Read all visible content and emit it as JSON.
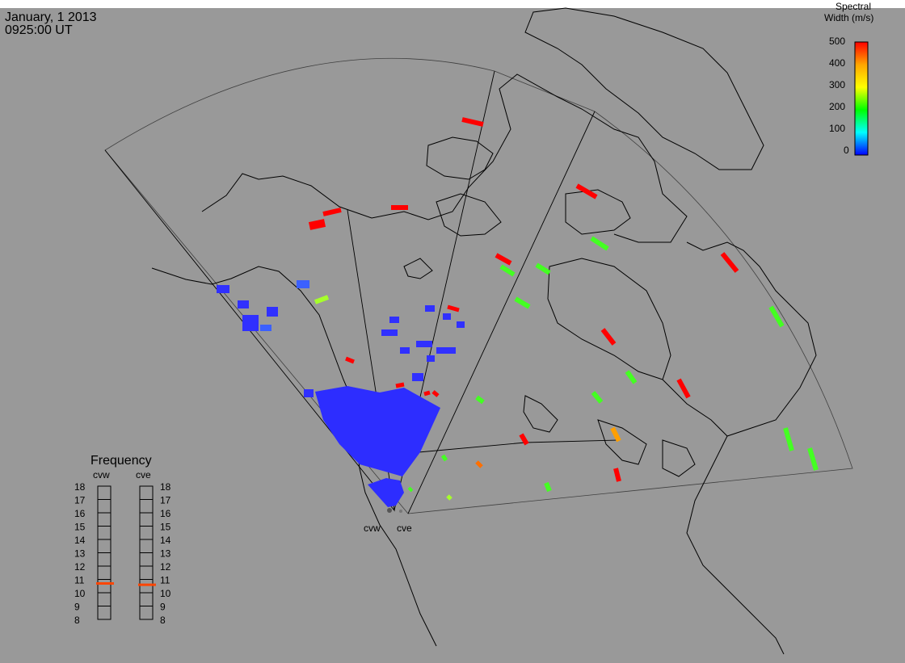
{
  "header": {
    "date": "January, 1 2013",
    "time": "0925:00 UT"
  },
  "colorbar": {
    "title_line1": "Spectral",
    "title_line2": "Width (m/s)",
    "ticks": [
      "500",
      "400",
      "300",
      "200",
      "100",
      "0"
    ],
    "colors": [
      "#ff0000",
      "#ffa500",
      "#ffff00",
      "#00ff00",
      "#00ffff",
      "#0000ff"
    ]
  },
  "radars": {
    "west": "cvw",
    "east": "cve"
  },
  "frequency_panel": {
    "title": "Frequency",
    "left_label": "cvw",
    "right_label": "cve",
    "ticks": [
      "18",
      "17",
      "16",
      "15",
      "14",
      "13",
      "12",
      "11",
      "10",
      "9",
      "8"
    ],
    "cvw_value": 10.7,
    "cve_value": 10.6,
    "marker_color": "#ff4500"
  }
}
